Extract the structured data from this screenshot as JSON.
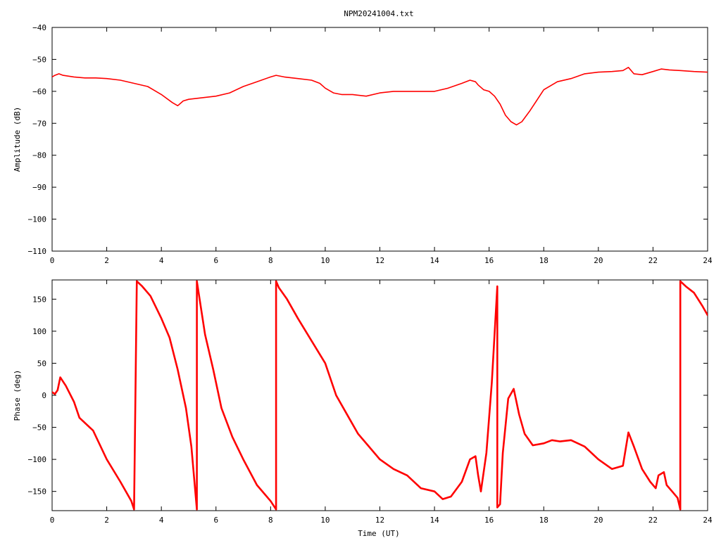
{
  "title": "NPM20241004.txt",
  "xlabel": "Time (UT)",
  "chart_data": [
    {
      "type": "line",
      "name": "amplitude-panel",
      "title": "NPM20241004.txt",
      "xlabel": "",
      "ylabel": "Amplitude (dB)",
      "xlim": [
        0,
        24
      ],
      "ylim": [
        -110,
        -40
      ],
      "xticks": [
        0,
        2,
        4,
        6,
        8,
        10,
        12,
        14,
        16,
        18,
        20,
        22,
        24
      ],
      "yticks": [
        -110,
        -100,
        -90,
        -80,
        -70,
        -60,
        -50,
        -40
      ],
      "grid": false,
      "legend": "none",
      "color": "#ff0000",
      "series": [
        {
          "x": [
            0.0,
            0.1,
            0.25,
            0.4,
            0.8,
            1.2,
            1.6,
            2.0,
            2.5,
            3.0,
            3.5,
            4.0,
            4.4,
            4.6,
            4.8,
            5.0,
            5.5,
            6.0,
            6.5,
            7.0,
            7.5,
            8.0,
            8.2,
            8.5,
            9.0,
            9.5,
            9.8,
            10.0,
            10.3,
            10.6,
            11.0,
            11.5,
            12.0,
            12.5,
            13.0,
            13.5,
            14.0,
            14.5,
            15.0,
            15.3,
            15.5,
            15.6,
            15.8,
            16.0,
            16.2,
            16.4,
            16.6,
            16.8,
            17.0,
            17.2,
            17.5,
            18.0,
            18.5,
            19.0,
            19.5,
            20.0,
            20.5,
            20.9,
            21.1,
            21.3,
            21.6,
            22.0,
            22.3,
            22.6,
            23.0,
            23.5,
            24.0
          ],
          "y": [
            -55.5,
            -55.0,
            -54.5,
            -55.0,
            -55.5,
            -55.8,
            -55.8,
            -56.0,
            -56.5,
            -57.5,
            -58.5,
            -61.0,
            -63.5,
            -64.5,
            -63.0,
            -62.5,
            -62.0,
            -61.5,
            -60.5,
            -58.5,
            -57.0,
            -55.5,
            -55.0,
            -55.5,
            -56.0,
            -56.5,
            -57.5,
            -59.0,
            -60.5,
            -61.0,
            -61.0,
            -61.5,
            -60.5,
            -60.0,
            -60.0,
            -60.0,
            -60.0,
            -59.0,
            -57.5,
            -56.5,
            -57.0,
            -58.0,
            -59.5,
            -60.0,
            -61.5,
            -64.0,
            -67.5,
            -69.5,
            -70.5,
            -69.5,
            -66.0,
            -59.5,
            -57.0,
            -56.0,
            -54.5,
            -54.0,
            -53.8,
            -53.5,
            -52.5,
            -54.5,
            -54.8,
            -53.8,
            -53.0,
            -53.3,
            -53.5,
            -53.8,
            -54.0
          ]
        }
      ]
    },
    {
      "type": "line",
      "name": "phase-panel",
      "title": "",
      "xlabel": "Time (UT)",
      "ylabel": "Phase (deg)",
      "xlim": [
        0,
        24
      ],
      "ylim": [
        -180,
        180
      ],
      "xticks": [
        0,
        2,
        4,
        6,
        8,
        10,
        12,
        14,
        16,
        18,
        20,
        22,
        24
      ],
      "yticks": [
        -150,
        -100,
        -50,
        0,
        50,
        100,
        150
      ],
      "grid": false,
      "legend": "none",
      "color": "#ff0000",
      "series": [
        {
          "x": [
            0.0,
            0.1,
            0.2,
            0.3,
            0.5,
            0.8,
            1.0,
            1.5,
            2.0,
            2.5,
            2.9,
            3.0,
            3.1,
            3.3,
            3.6,
            4.0,
            4.3,
            4.6,
            4.9,
            5.1,
            5.3,
            5.3,
            5.4,
            5.6,
            5.9,
            6.2,
            6.6,
            7.0,
            7.5,
            8.0,
            8.2,
            8.2,
            8.3,
            8.6,
            9.0,
            9.5,
            10.0,
            10.4,
            10.8,
            11.2,
            11.6,
            12.0,
            12.5,
            13.0,
            13.5,
            14.0,
            14.3,
            14.6,
            15.0,
            15.3,
            15.5,
            15.6,
            15.7,
            15.9,
            16.1,
            16.3,
            16.3,
            16.4,
            16.5,
            16.7,
            16.9,
            17.1,
            17.3,
            17.6,
            18.0,
            18.3,
            18.6,
            19.0,
            19.5,
            20.0,
            20.5,
            20.9,
            21.1,
            21.3,
            21.6,
            21.9,
            22.1,
            22.2,
            22.4,
            22.5,
            22.7,
            22.9,
            23.0,
            23.0,
            23.2,
            23.5,
            23.8,
            24.0
          ],
          "y": [
            5,
            2,
            8,
            28,
            15,
            -10,
            -35,
            -55,
            -100,
            -135,
            -165,
            -178,
            178,
            170,
            155,
            120,
            90,
            40,
            -20,
            -80,
            -178,
            178,
            150,
            95,
            40,
            -20,
            -65,
            -100,
            -140,
            -165,
            -178,
            178,
            168,
            150,
            120,
            85,
            50,
            0,
            -30,
            -60,
            -80,
            -100,
            -115,
            -125,
            -145,
            -150,
            -162,
            -158,
            -135,
            -100,
            -95,
            -125,
            -150,
            -90,
            20,
            170,
            -175,
            -170,
            -90,
            -5,
            10,
            -30,
            -60,
            -78,
            -75,
            -70,
            -72,
            -70,
            -80,
            -100,
            -115,
            -110,
            -58,
            -80,
            -115,
            -135,
            -145,
            -125,
            -120,
            -140,
            -150,
            -160,
            -178,
            178,
            170,
            160,
            140,
            125
          ]
        }
      ]
    }
  ]
}
